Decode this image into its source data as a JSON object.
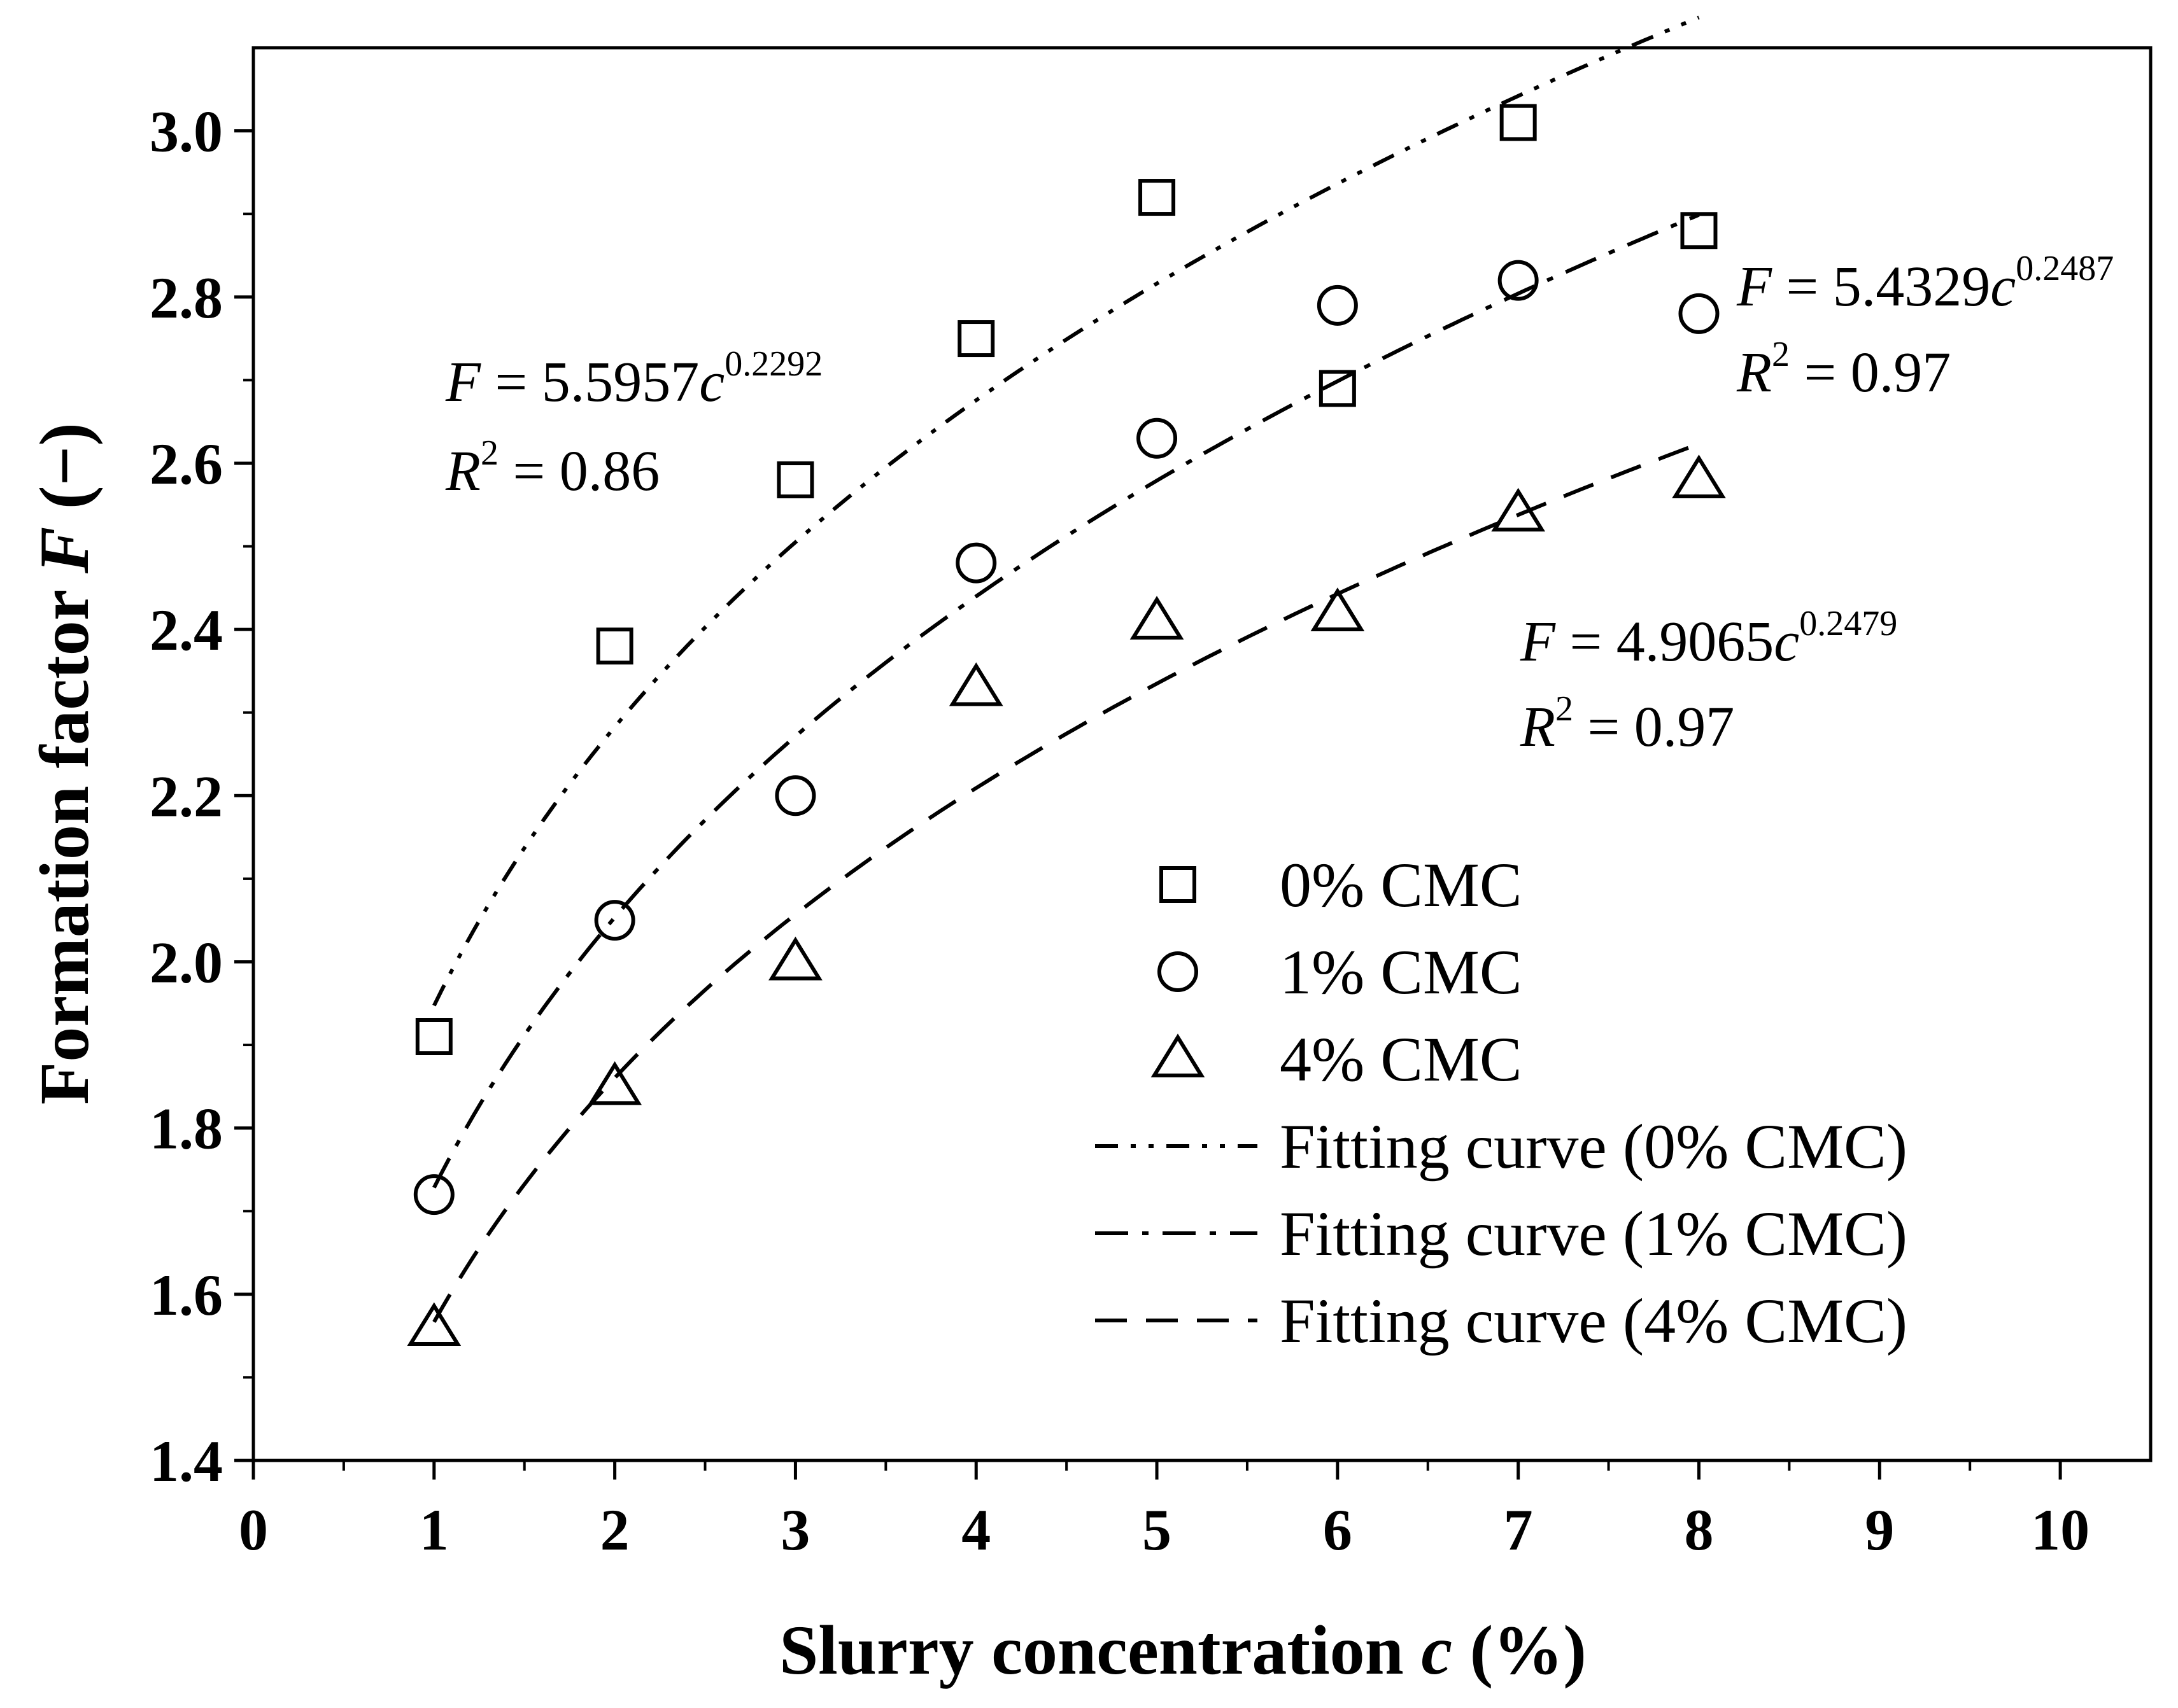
{
  "chart_data": {
    "type": "scatter",
    "title": "",
    "xlabel_main": "Slurry concentration ",
    "xlabel_var": "c",
    "xlabel_unit": " (%)",
    "ylabel_main": "Formation factor ",
    "ylabel_var": "F",
    "ylabel_unit": " (−)",
    "xlim": [
      0,
      10.5
    ],
    "ylim": [
      1.4,
      3.1
    ],
    "xticks": [
      0,
      1,
      2,
      3,
      4,
      5,
      6,
      7,
      8,
      9,
      10
    ],
    "xtick_labels": [
      "0",
      "1",
      "2",
      "3",
      "4",
      "5",
      "6",
      "7",
      "8",
      "9",
      "10"
    ],
    "yticks": [
      1.4,
      1.6,
      1.8,
      2.0,
      2.2,
      2.4,
      2.6,
      2.8,
      3.0
    ],
    "ytick_labels": [
      "1.4",
      "1.6",
      "1.8",
      "2.0",
      "2.2",
      "2.4",
      "2.6",
      "2.8",
      "3.0"
    ],
    "grid": false,
    "legend_position": "lower-right",
    "series": [
      {
        "name": "0% CMC",
        "marker": "square",
        "x": [
          1,
          2,
          3,
          4,
          5,
          6,
          7,
          8
        ],
        "y": [
          1.91,
          2.38,
          2.58,
          2.75,
          2.92,
          2.69,
          3.01,
          2.88
        ]
      },
      {
        "name": "1% CMC",
        "marker": "circle",
        "x": [
          1,
          2,
          3,
          4,
          5,
          6,
          7,
          8
        ],
        "y": [
          1.72,
          2.05,
          2.2,
          2.48,
          2.63,
          2.79,
          2.82,
          2.78
        ]
      },
      {
        "name": "4% CMC",
        "marker": "triangle",
        "x": [
          1,
          2,
          3,
          4,
          5,
          6,
          7,
          8
        ],
        "y": [
          1.56,
          1.85,
          2.0,
          2.33,
          2.41,
          2.42,
          2.54,
          2.58
        ]
      }
    ],
    "fits": [
      {
        "name": "Fitting curve (0% CMC)",
        "dash": "dash-dot-dot",
        "a": 5.5957,
        "b": 0.2292,
        "x_range": [
          1,
          8
        ],
        "equation_var": "F",
        "equation_mid": " = 5.5957",
        "equation_c": "c",
        "equation_exp": "0.2292",
        "r2_var": "R",
        "r2_exp": "2",
        "r2_value": " = 0.86"
      },
      {
        "name": "Fitting curve (1% CMC)",
        "dash": "dash-dot",
        "a": 5.4329,
        "b": 0.2487,
        "x_range": [
          1,
          8
        ],
        "equation_var": "F",
        "equation_mid": " = 5.4329",
        "equation_c": "c",
        "equation_exp": "0.2487",
        "r2_var": "R",
        "r2_exp": "2",
        "r2_value": " = 0.97"
      },
      {
        "name": "Fitting curve (4% CMC)",
        "dash": "dash",
        "a": 4.9065,
        "b": 0.2479,
        "x_range": [
          1,
          8
        ],
        "equation_var": "F",
        "equation_mid": " = 4.9065",
        "equation_c": "c",
        "equation_exp": "0.2479",
        "r2_var": "R",
        "r2_exp": "2",
        "r2_value": " = 0.97"
      }
    ]
  },
  "colors": {
    "ink": "#000000",
    "background": "#ffffff"
  }
}
